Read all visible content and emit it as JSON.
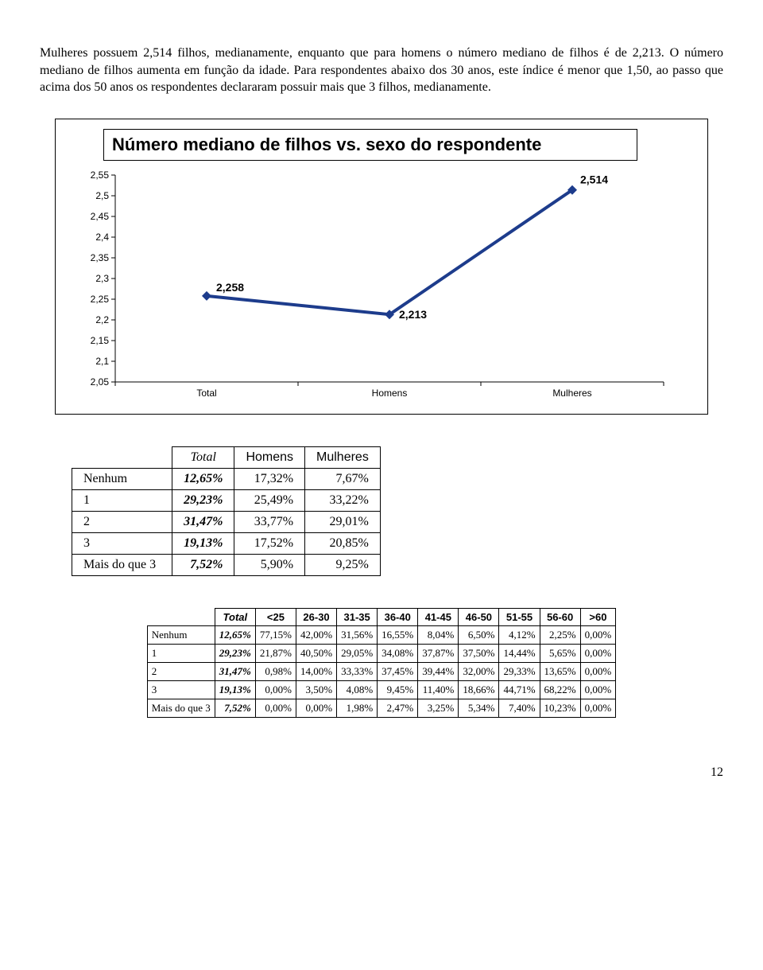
{
  "paragraph": "Mulheres possuem 2,514 filhos, medianamente, enquanto que para homens o número mediano de filhos é de 2,213. O número mediano de filhos aumenta em função da idade. Para respondentes abaixo dos 30 anos, este índice é menor que 1,50, ao passo que acima dos 50 anos os respondentes declararam possuir mais que 3 filhos, medianamente.",
  "chart": {
    "type": "line",
    "title": "Número mediano de filhos vs. sexo do respondente",
    "categories": [
      "Total",
      "Homens",
      "Mulheres"
    ],
    "values": [
      2.258,
      2.213,
      2.514
    ],
    "value_labels": [
      "2,258",
      "2,213",
      "2,514"
    ],
    "ylim": [
      2.05,
      2.55
    ],
    "ytick_step": 0.05,
    "yticks": [
      "2,05",
      "2,1",
      "2,15",
      "2,2",
      "2,25",
      "2,3",
      "2,35",
      "2,4",
      "2,45",
      "2,5",
      "2,55"
    ],
    "line_color": "#1d3c8c",
    "marker_color": "#1d3c8c",
    "background": "#ffffff",
    "title_fontsize": 22,
    "axis_fontsize": 12,
    "point_label_fontsize": 14,
    "line_width": 4,
    "marker_size": 6
  },
  "table1": {
    "header_italic": "Total",
    "headers": [
      "Homens",
      "Mulheres"
    ],
    "rows": [
      {
        "label": "Nenhum",
        "vals": [
          "12,65%",
          "17,32%",
          "7,67%"
        ],
        "bold": true
      },
      {
        "label": "1",
        "vals": [
          "29,23%",
          "25,49%",
          "33,22%"
        ],
        "bold": true
      },
      {
        "label": "2",
        "vals": [
          "31,47%",
          "33,77%",
          "29,01%"
        ],
        "bold": true
      },
      {
        "label": "3",
        "vals": [
          "19,13%",
          "17,52%",
          "20,85%"
        ],
        "bold": true
      },
      {
        "label": "Mais do que 3",
        "vals": [
          "7,52%",
          "5,90%",
          "9,25%"
        ],
        "bold": true
      }
    ]
  },
  "table2": {
    "header_italic": "Total",
    "headers": [
      "<25",
      "26-30",
      "31-35",
      "36-40",
      "41-45",
      "46-50",
      "51-55",
      "56-60",
      ">60"
    ],
    "rows": [
      {
        "label": "Nenhum",
        "vals": [
          "12,65%",
          "77,15%",
          "42,00%",
          "31,56%",
          "16,55%",
          "8,04%",
          "6,50%",
          "4,12%",
          "2,25%",
          "0,00%"
        ]
      },
      {
        "label": "1",
        "vals": [
          "29,23%",
          "21,87%",
          "40,50%",
          "29,05%",
          "34,08%",
          "37,87%",
          "37,50%",
          "14,44%",
          "5,65%",
          "0,00%"
        ]
      },
      {
        "label": "2",
        "vals": [
          "31,47%",
          "0,98%",
          "14,00%",
          "33,33%",
          "37,45%",
          "39,44%",
          "32,00%",
          "29,33%",
          "13,65%",
          "0,00%"
        ]
      },
      {
        "label": "3",
        "vals": [
          "19,13%",
          "0,00%",
          "3,50%",
          "4,08%",
          "9,45%",
          "11,40%",
          "18,66%",
          "44,71%",
          "68,22%",
          "0,00%"
        ]
      },
      {
        "label": "Mais do que 3",
        "vals": [
          "7,52%",
          "0,00%",
          "0,00%",
          "1,98%",
          "2,47%",
          "3,25%",
          "5,34%",
          "7,40%",
          "10,23%",
          "0,00%"
        ]
      }
    ]
  },
  "pagenum": "12"
}
